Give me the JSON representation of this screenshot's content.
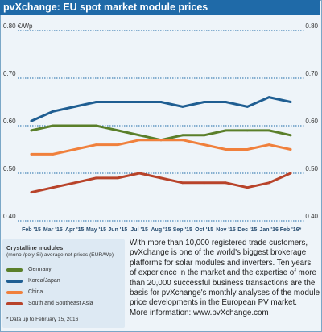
{
  "title": "pvXchange: EU spot market module prices",
  "legend": {
    "heading": "Crystalline modules",
    "subheading": "(mono-/poly-Si) average net prices (EUR/Wp)",
    "footnote": "* Data up to February 15, 2016"
  },
  "info_lines": [
    "With more than 10,000 registered trade customers,",
    "pvXchange is one of the world's biggest brokerage",
    "platforms for solar modules and inverters. Ten years",
    "of experience in the market and the expertise of more",
    "than 20,000 successful business transactions are the",
    "basis for pvXchange's monthly analyses of the module",
    "price developments in the European PV market.",
    "More information: www.pvXchange.com"
  ],
  "colors": {
    "title_bar": "#1f6aa8",
    "background": "#eef4f9",
    "grid": "#1f6aa8",
    "tick_label": "#333333",
    "Germany": "#5a7f2a",
    "Korea/Japan": "#1f5e92",
    "China": "#f0803c",
    "South and Southeast Asia": "#b8432a"
  },
  "chart_data": {
    "type": "line",
    "title": "pvXchange: EU spot market module prices",
    "ylabel": "",
    "xlabel": "",
    "y_unit_label": "0.80 €/Wp",
    "ylim": [
      0.4,
      0.8
    ],
    "yticks": [
      0.4,
      0.5,
      0.6,
      0.7,
      0.8
    ],
    "ytick_labels": [
      "0.40",
      "0.50",
      "0.60",
      "0.70",
      "0.80 €/Wp"
    ],
    "ytick_labels_right": [
      "0.40",
      "0.50",
      "0.60",
      "0.70",
      "0.80"
    ],
    "grid": true,
    "legend_position": "bottom-left",
    "categories": [
      "Feb '15",
      "Mar '15",
      "Apr '15",
      "May '15",
      "Jun '15",
      "Jul '15",
      "Aug '15",
      "Sep '15",
      "Oct '15",
      "Nov '15",
      "Dec '15",
      "Jan '16",
      "Feb '16*"
    ],
    "series": [
      {
        "name": "Korea/Japan",
        "values": [
          0.61,
          0.63,
          0.64,
          0.65,
          0.65,
          0.65,
          0.65,
          0.64,
          0.65,
          0.65,
          0.64,
          0.66,
          0.65
        ]
      },
      {
        "name": "Germany",
        "values": [
          0.59,
          0.6,
          0.6,
          0.6,
          0.59,
          0.58,
          0.57,
          0.58,
          0.58,
          0.59,
          0.59,
          0.59,
          0.58
        ]
      },
      {
        "name": "China",
        "values": [
          0.54,
          0.54,
          0.55,
          0.56,
          0.56,
          0.57,
          0.57,
          0.57,
          0.56,
          0.55,
          0.55,
          0.56,
          0.55
        ]
      },
      {
        "name": "South and Southeast Asia",
        "values": [
          0.46,
          0.47,
          0.48,
          0.49,
          0.49,
          0.5,
          0.49,
          0.48,
          0.48,
          0.48,
          0.47,
          0.48,
          0.5
        ]
      }
    ]
  }
}
